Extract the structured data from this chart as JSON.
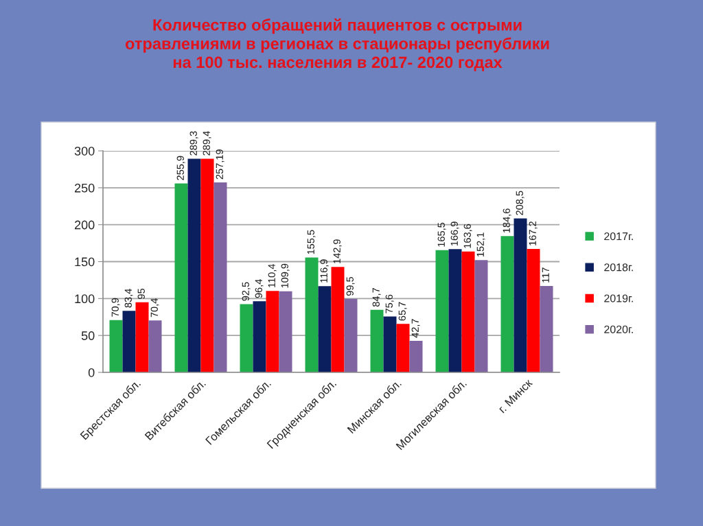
{
  "chart_data": {
    "type": "bar",
    "title": "Количество обращений пациентов с острыми\nотравлениями в регионах в стационары республики\nна 100 тыс. населения в 2017- 2020 годах",
    "categories": [
      "Брестская обл.",
      "Витебская обл.",
      "Гомельская обл.",
      "Гродненская обл.",
      "Минская обл.",
      "Могилевская обл.",
      "г. Минск"
    ],
    "series": [
      {
        "name": "2017г.",
        "color": "#1fae4b",
        "values": [
          70.9,
          255.9,
          92.5,
          155.5,
          84.7,
          165.5,
          184.6
        ],
        "value_labels": [
          "70,9",
          "255,9",
          "92,5",
          "155,5",
          "84,7",
          "165,5",
          "184,6"
        ]
      },
      {
        "name": "2018г.",
        "color": "#0b1f5e",
        "values": [
          83.4,
          289.3,
          96.4,
          116.9,
          75.6,
          166.9,
          208.5
        ],
        "value_labels": [
          "83,4",
          "289,3",
          "96,4",
          "116,9",
          "75,6",
          "166,9",
          "208,5"
        ]
      },
      {
        "name": "2019г.",
        "color": "#ff0000",
        "values": [
          95,
          289.4,
          110.4,
          142.9,
          65.7,
          163.6,
          167.2
        ],
        "value_labels": [
          "95",
          "289,4",
          "110,4",
          "142,9",
          "65,7",
          "163,6",
          "167,2"
        ]
      },
      {
        "name": "2020г.",
        "color": "#8064a2",
        "values": [
          70.4,
          257.19,
          109.9,
          99.5,
          42.7,
          152.1,
          117
        ],
        "value_labels": [
          "70,4",
          "257,19",
          "109,9",
          "99,5",
          "42,7",
          "152,1",
          "117"
        ]
      }
    ],
    "ylim": [
      0,
      300
    ],
    "yticks": [
      0,
      50,
      100,
      150,
      200,
      250,
      300
    ],
    "grid": "y",
    "legend": "right"
  }
}
